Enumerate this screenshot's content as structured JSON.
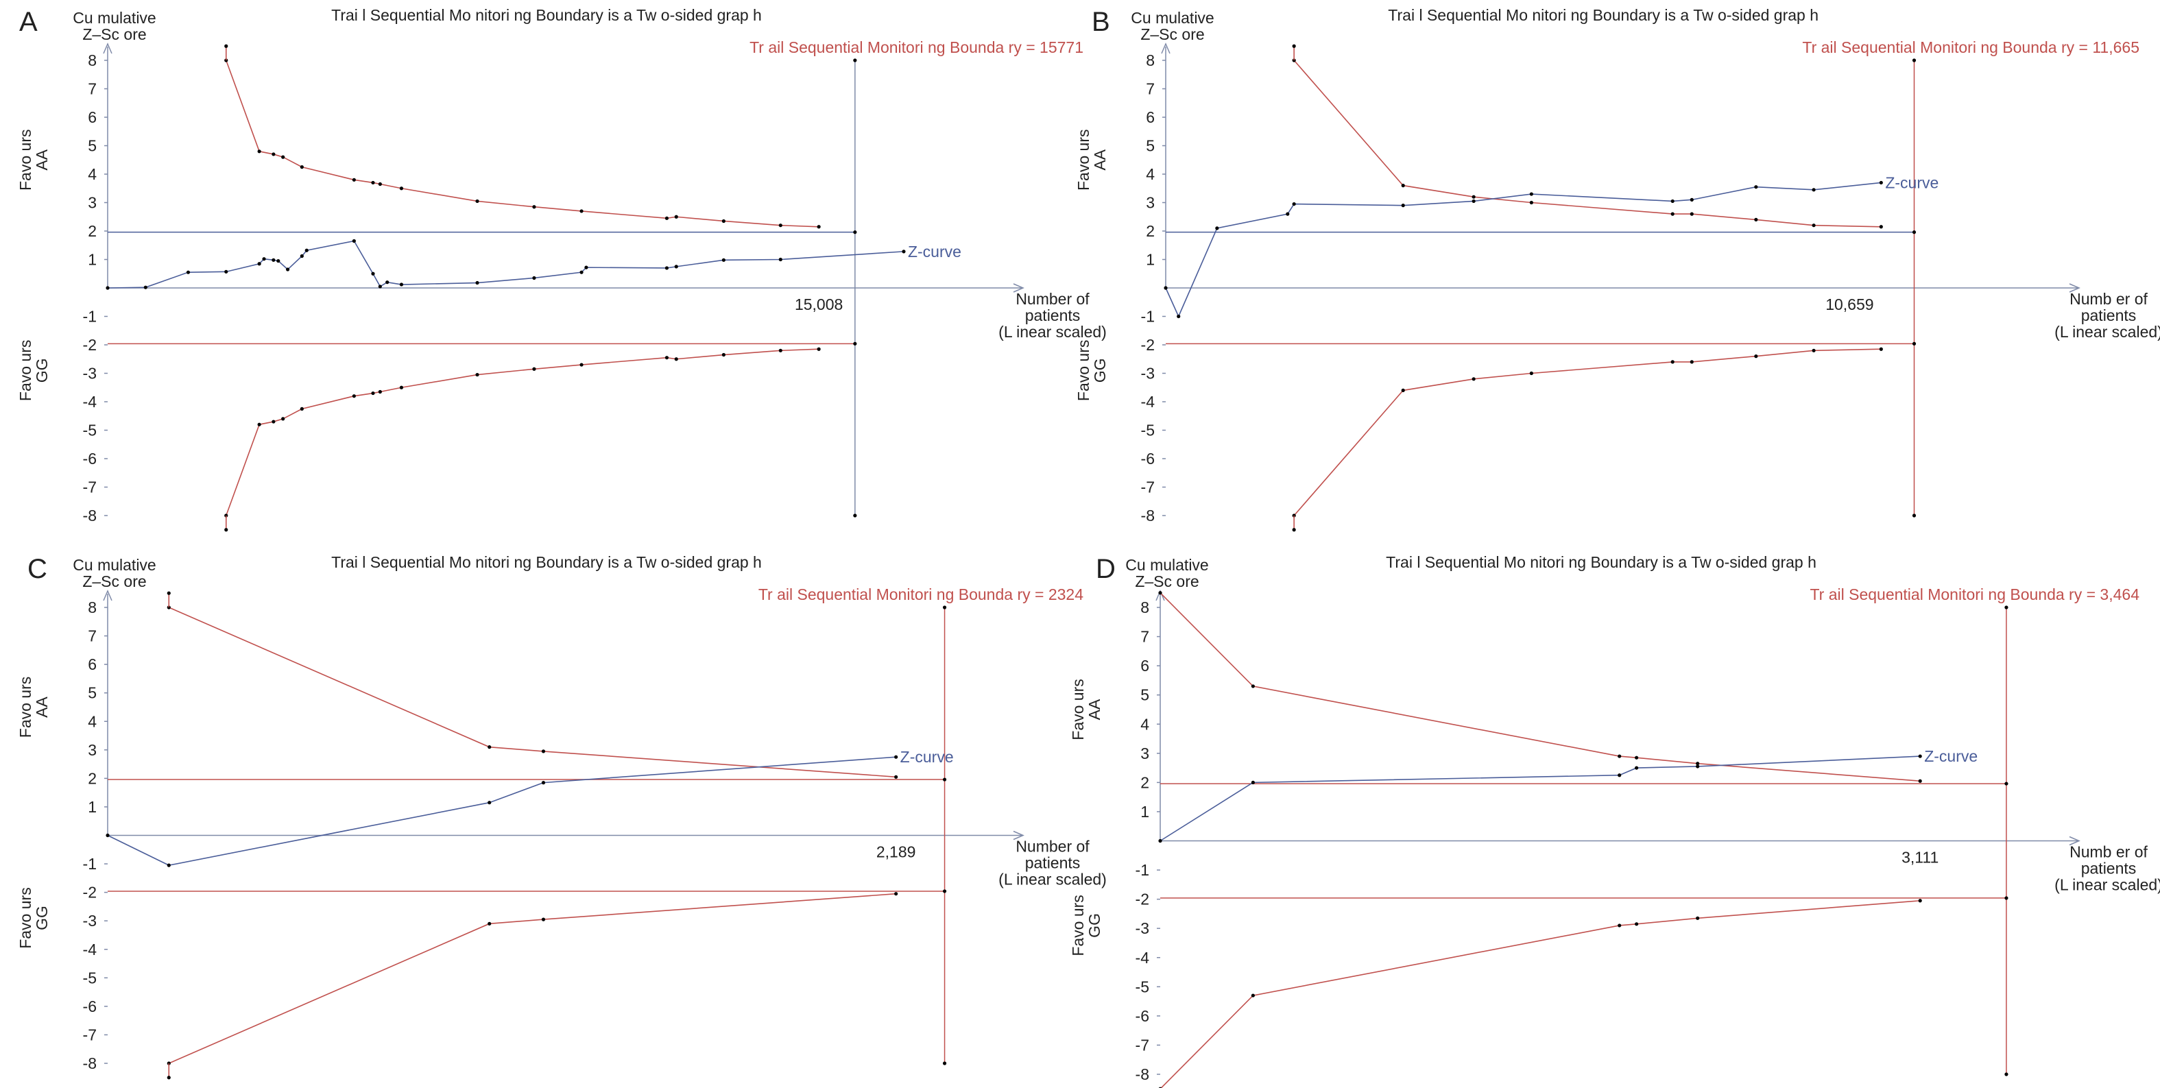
{
  "colors": {
    "boundary": "#c0504d",
    "zcurve": "#4a5d99",
    "axis": "#7f8aa8",
    "text": "#222222",
    "marker": "#000000"
  },
  "chart_data": [
    {
      "type": "line",
      "panel_label": "A",
      "title": "Trai l Sequential Mo nitori ng Boundary is a  Tw o-sided grap h",
      "ylabel_lines": [
        "Cu mulative",
        "Z–Sc ore"
      ],
      "xlabel_lines": [
        "Number of",
        "patients",
        "(L inear scaled)"
      ],
      "favours_upper": [
        "Favo urs",
        "AA"
      ],
      "favours_lower": [
        "Favo urs",
        "GG"
      ],
      "tsmb_label": "Tr ail Sequential Monitori ng Bounda ry = 15771",
      "required_information_size": 15771,
      "xlim": [
        0,
        19000
      ],
      "ylim": [
        -8,
        8
      ],
      "yticks": [
        8,
        7,
        6,
        5,
        4,
        3,
        2,
        1,
        -1,
        -2,
        -3,
        -4,
        -5,
        -6,
        -7,
        -8
      ],
      "x_marker_label": "15,008",
      "x_marker_value": 15008,
      "conventional_boundary": 1.96,
      "z_curve": {
        "name": "Z-curve",
        "x": [
          0,
          800,
          1700,
          2500,
          3200,
          3300,
          3500,
          3600,
          3800,
          4100,
          4200,
          5200,
          5600,
          5750,
          5900,
          6200,
          7800,
          9000,
          10000,
          10100,
          11800,
          12000,
          13000,
          14200,
          16800
        ],
        "y": [
          0,
          0.02,
          0.55,
          0.57,
          0.85,
          1.02,
          0.98,
          0.95,
          0.65,
          1.12,
          1.32,
          1.65,
          0.5,
          0.05,
          0.2,
          0.12,
          0.18,
          0.35,
          0.55,
          0.72,
          0.7,
          0.75,
          0.98,
          1.0,
          1.28
        ]
      },
      "upper_boundary": {
        "x": [
          2500,
          3200,
          3500,
          3700,
          4100,
          5200,
          5600,
          5750,
          6200,
          7800,
          9000,
          10000,
          11800,
          12000,
          13000,
          14200,
          15008
        ],
        "y": [
          8.0,
          4.8,
          4.7,
          4.6,
          4.25,
          3.8,
          3.7,
          3.65,
          3.5,
          3.05,
          2.85,
          2.7,
          2.45,
          2.5,
          2.35,
          2.2,
          2.15
        ]
      },
      "lower_boundary": {
        "x": [
          2500,
          3200,
          3500,
          3700,
          4100,
          5200,
          5600,
          5750,
          6200,
          7800,
          9000,
          10000,
          11800,
          12000,
          13000,
          14200,
          15008
        ],
        "y": [
          -8.0,
          -4.8,
          -4.7,
          -4.6,
          -4.25,
          -3.8,
          -3.7,
          -3.65,
          -3.5,
          -3.05,
          -2.85,
          -2.7,
          -2.45,
          -2.5,
          -2.35,
          -2.2,
          -2.15
        ]
      }
    },
    {
      "type": "line",
      "panel_label": "B",
      "title": "Trai l Sequential Mo nitori ng Boundary is a  Tw o-sided grap h",
      "ylabel_lines": [
        "Cu mulative",
        "Z–Sc ore"
      ],
      "xlabel_lines": [
        "Numb er of",
        "patients",
        "(L inear scaled)"
      ],
      "favours_upper": [
        "Favo urs",
        "AA"
      ],
      "favours_lower": [
        "Favo urs",
        "GG"
      ],
      "tsmb_label": "Tr ail Sequential Monitori ng Bounda ry = 11,665",
      "required_information_size": 11665,
      "xlim": [
        0,
        14000
      ],
      "ylim": [
        -8,
        8
      ],
      "yticks": [
        8,
        7,
        6,
        5,
        4,
        3,
        2,
        1,
        -1,
        -2,
        -3,
        -4,
        -5,
        -6,
        -7,
        -8
      ],
      "x_marker_label": "10,659",
      "x_marker_value": 10659,
      "conventional_boundary": 1.96,
      "z_curve": {
        "name": "Z-curve",
        "x": [
          0,
          200,
          800,
          1900,
          2000,
          3700,
          4800,
          5700,
          7900,
          8200,
          9200,
          10100,
          11150
        ],
        "y": [
          0,
          -1.0,
          2.1,
          2.6,
          2.95,
          2.9,
          3.05,
          3.3,
          3.05,
          3.1,
          3.55,
          3.45,
          3.7
        ]
      },
      "upper_boundary": {
        "x": [
          2000,
          3700,
          4800,
          5700,
          7900,
          8200,
          9200,
          10100,
          11150
        ],
        "y": [
          8.0,
          3.6,
          3.2,
          3.0,
          2.6,
          2.6,
          2.4,
          2.2,
          2.15
        ]
      },
      "lower_boundary": {
        "x": [
          2000,
          3700,
          4800,
          5700,
          7900,
          8200,
          9200,
          10100,
          11150
        ],
        "y": [
          -8.0,
          -3.6,
          -3.2,
          -3.0,
          -2.6,
          -2.6,
          -2.4,
          -2.2,
          -2.15
        ]
      }
    },
    {
      "type": "line",
      "panel_label": "C",
      "title": "Trai l Sequential Mo nitori ng Boundary is a  Tw o-sided grap h",
      "ylabel_lines": [
        "Cu mulative",
        "Z–Sc ore"
      ],
      "xlabel_lines": [
        "Number of",
        "patients",
        "(L inear scaled)"
      ],
      "favours_upper": [
        "Favo urs",
        "AA"
      ],
      "favours_lower": [
        "Favo urs",
        "GG"
      ],
      "tsmb_label": "Tr ail Sequential Monitori ng Bounda ry = 2324",
      "required_information_size": 2324,
      "xlim": [
        0,
        2500
      ],
      "ylim": [
        -8,
        8
      ],
      "yticks": [
        8,
        7,
        6,
        5,
        4,
        3,
        2,
        1,
        -1,
        -2,
        -3,
        -4,
        -5,
        -6,
        -7,
        -8
      ],
      "x_marker_label": "2,189",
      "x_marker_value": 2189,
      "conventional_boundary": 1.96,
      "z_curve": {
        "name": "Z-curve",
        "x": [
          0,
          170,
          1060,
          1210,
          2189
        ],
        "y": [
          0,
          -1.05,
          1.15,
          1.85,
          2.75
        ]
      },
      "upper_boundary": {
        "x": [
          170,
          1060,
          1210,
          2189
        ],
        "y": [
          8.0,
          3.1,
          2.95,
          2.05
        ]
      },
      "lower_boundary": {
        "x": [
          170,
          1060,
          1210,
          2189
        ],
        "y": [
          -8.0,
          -3.1,
          -2.95,
          -2.05
        ]
      }
    },
    {
      "type": "line",
      "panel_label": "D",
      "title": "Trai l Sequential Mo nitori ng Boundary is a  Tw o-sided grap h",
      "ylabel_lines": [
        "Cu mulative",
        "Z–Sc ore"
      ],
      "xlabel_lines": [
        "Numb er of",
        "patients",
        "(L inear scaled)"
      ],
      "favours_upper": [
        "Favo urs",
        "AA"
      ],
      "favours_lower": [
        "Favo urs",
        "GG"
      ],
      "tsmb_label": "Tr ail Sequential Monitori ng Bounda ry = 3,464",
      "required_information_size": 3464,
      "xlim": [
        0,
        3700
      ],
      "ylim": [
        -8,
        8
      ],
      "yticks": [
        8,
        7,
        6,
        5,
        4,
        3,
        2,
        1,
        -1,
        -2,
        -3,
        -4,
        -5,
        -6,
        -7,
        -8
      ],
      "x_marker_label": "3,111",
      "x_marker_value": 3111,
      "conventional_boundary": 1.96,
      "z_curve": {
        "name": "Z-curve",
        "x": [
          0,
          380,
          1880,
          1950,
          2200,
          3111
        ],
        "y": [
          0,
          2.0,
          2.25,
          2.5,
          2.55,
          2.9
        ]
      },
      "upper_boundary": {
        "x": [
          0,
          380,
          1880,
          1950,
          2200,
          3111
        ],
        "y": [
          8.5,
          5.3,
          2.9,
          2.85,
          2.65,
          2.05
        ]
      },
      "lower_boundary": {
        "x": [
          0,
          380,
          1880,
          1950,
          2200,
          3111
        ],
        "y": [
          -8.5,
          -5.3,
          -2.9,
          -2.85,
          -2.65,
          -2.05
        ]
      }
    }
  ]
}
